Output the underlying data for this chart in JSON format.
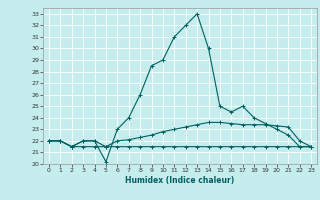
{
  "xlabel": "Humidex (Indice chaleur)",
  "bg_color": "#c5eded",
  "line_color": "#006060",
  "grid_color": "#ffffff",
  "xlim": [
    -0.5,
    23.5
  ],
  "ylim": [
    20,
    33.5
  ],
  "xticks": [
    0,
    1,
    2,
    3,
    4,
    5,
    6,
    7,
    8,
    9,
    10,
    11,
    12,
    13,
    14,
    15,
    16,
    17,
    18,
    19,
    20,
    21,
    22,
    23
  ],
  "yticks": [
    20,
    21,
    22,
    23,
    24,
    25,
    26,
    27,
    28,
    29,
    30,
    31,
    32,
    33
  ],
  "line1_x": [
    0,
    1,
    2,
    3,
    4,
    5,
    6,
    7,
    8,
    9,
    10,
    11,
    12,
    13,
    14,
    15,
    16,
    17,
    18,
    19,
    20,
    21,
    22,
    23
  ],
  "line1_y": [
    22,
    22,
    21.5,
    22,
    22,
    20.2,
    23,
    24,
    26,
    28.5,
    29,
    31,
    32,
    33,
    30,
    25,
    24.5,
    25,
    24,
    23.5,
    23,
    22.5,
    21.5,
    21.5
  ],
  "line2_x": [
    0,
    1,
    2,
    3,
    4,
    5,
    6,
    7,
    8,
    9,
    10,
    11,
    12,
    13,
    14,
    15,
    16,
    17,
    18,
    19,
    20,
    21,
    22,
    23
  ],
  "line2_y": [
    22,
    22,
    21.5,
    22,
    22,
    21.5,
    22,
    22.1,
    22.3,
    22.5,
    22.8,
    23.0,
    23.2,
    23.4,
    23.6,
    23.6,
    23.5,
    23.4,
    23.4,
    23.4,
    23.3,
    23.2,
    22,
    21.5
  ],
  "line3_x": [
    0,
    1,
    2,
    3,
    4,
    5,
    6,
    7,
    8,
    9,
    10,
    11,
    12,
    13,
    14,
    15,
    16,
    17,
    18,
    19,
    20,
    21,
    22,
    23
  ],
  "line3_y": [
    22,
    22,
    21.5,
    21.5,
    21.5,
    21.5,
    21.5,
    21.5,
    21.5,
    21.5,
    21.5,
    21.5,
    21.5,
    21.5,
    21.5,
    21.5,
    21.5,
    21.5,
    21.5,
    21.5,
    21.5,
    21.5,
    21.5,
    21.5
  ]
}
